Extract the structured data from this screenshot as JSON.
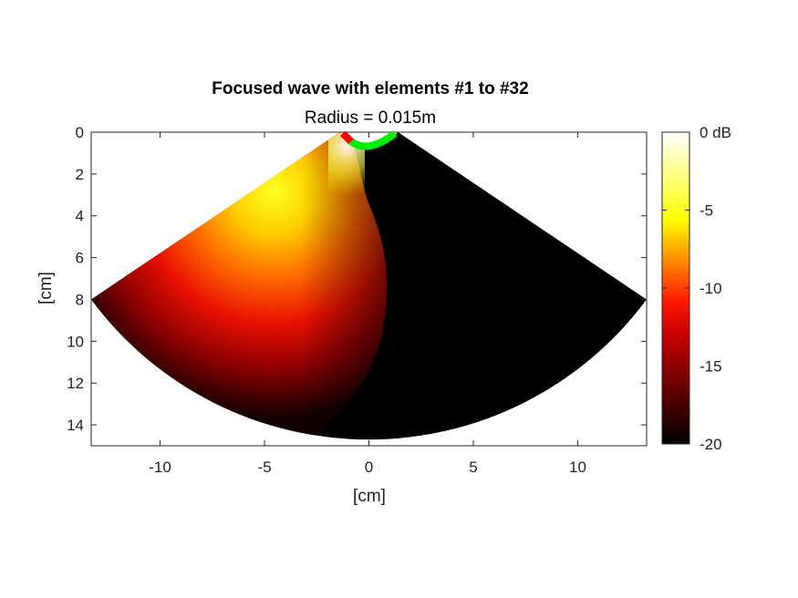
{
  "chart_data": {
    "type": "heatmap",
    "title": "Focused wave with elements #1 to #32",
    "subtitle": "Radius = 0.015m",
    "xlabel": "[cm]",
    "ylabel": "[cm]",
    "xlim": [
      -13.3,
      13.3
    ],
    "ylim": [
      0,
      15
    ],
    "y_reversed": true,
    "x_ticks": [
      "-10",
      "-5",
      "0",
      "5",
      "10"
    ],
    "y_ticks": [
      "0",
      "2",
      "4",
      "6",
      "8",
      "10",
      "12",
      "14"
    ],
    "colorbar": {
      "colormap": "hot",
      "range_db": [
        -20,
        0
      ],
      "tick_labels": [
        "0 dB",
        "-5",
        "-10",
        "-15",
        "-20"
      ]
    },
    "probe": {
      "type": "convex",
      "radius_m": 0.015,
      "active_elements": "#1 to #32",
      "active_color": "#ff0000",
      "inactive_color": "#00ee00"
    },
    "sector": {
      "apex_depth_cm": -1.5,
      "max_depth_cm": 15,
      "left_edge_at_depth_cm": 8,
      "right_edge_at_depth_cm": 8
    }
  }
}
